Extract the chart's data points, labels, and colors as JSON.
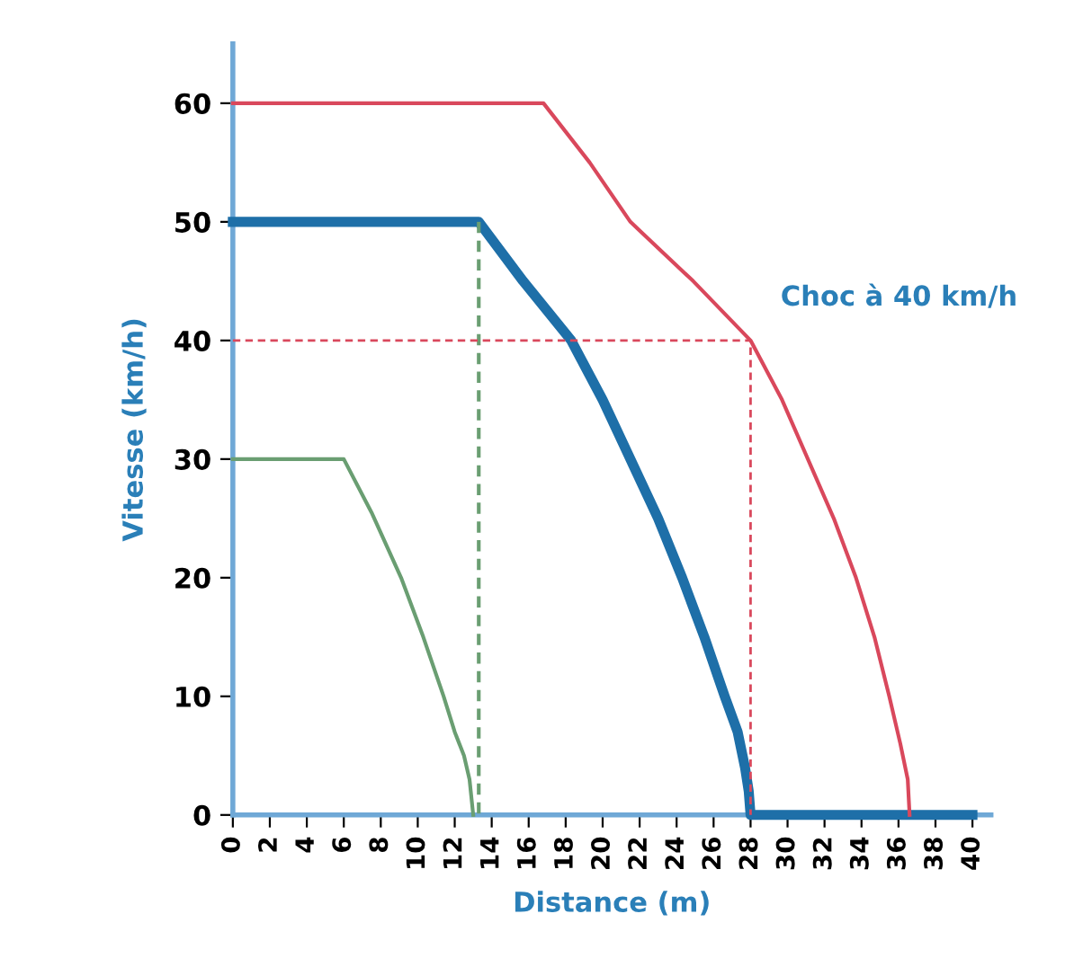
{
  "chart_data": {
    "type": "line",
    "xlabel": "Distance (m)",
    "ylabel": "Vitesse (km/h)",
    "xlim": [
      0,
      41
    ],
    "ylim": [
      0,
      65
    ],
    "xticks": [
      0,
      2,
      4,
      6,
      8,
      10,
      12,
      14,
      16,
      18,
      20,
      22,
      24,
      26,
      28,
      30,
      32,
      34,
      36,
      38,
      40
    ],
    "yticks": [
      0,
      10,
      20,
      30,
      40,
      50,
      60
    ],
    "grid": false,
    "legend": false,
    "marker": "none",
    "series": [
      {
        "color": "#6a9e72",
        "x": [
          0,
          6,
          7.5,
          9.1,
          10.3,
          11.4,
          12.0,
          12.5,
          12.8,
          13
        ],
        "values": [
          30,
          30,
          25.5,
          20,
          15,
          10,
          7,
          5,
          3,
          0
        ],
        "line_style": "solid"
      },
      {
        "color": "#1e6fa8",
        "x": [
          0,
          13.3,
          15.7,
          18.3,
          20,
          21.5,
          23,
          24.3,
          25.5,
          26.6,
          27.3,
          27.7,
          27.9,
          28,
          40
        ],
        "values": [
          50,
          50,
          45,
          40,
          35,
          30,
          25,
          20,
          15,
          10,
          7,
          4,
          2,
          0,
          0
        ],
        "line_style": "solid"
      },
      {
        "color": "#d9485c",
        "x": [
          0,
          16.8,
          19.3,
          21.5,
          24.9,
          28,
          29.7,
          31.1,
          32.5,
          33.7,
          34.7,
          35.5,
          36.1,
          36.5,
          36.6
        ],
        "values": [
          60,
          60,
          55,
          50,
          45,
          40,
          35,
          30,
          25,
          20,
          15,
          10,
          6,
          3,
          0
        ],
        "line_style": "solid"
      },
      {
        "color": "#6a9e72",
        "x": [
          13.3,
          13.3
        ],
        "values": [
          50,
          0
        ],
        "line_style": "dashed"
      },
      {
        "color": "#d9485c",
        "x": [
          0,
          28,
          28
        ],
        "values": [
          40,
          40,
          0
        ],
        "line_style": "dashed"
      }
    ],
    "annotations": [
      {
        "text": "Choc à 40 km/h",
        "x": 28,
        "y": 40
      }
    ]
  }
}
